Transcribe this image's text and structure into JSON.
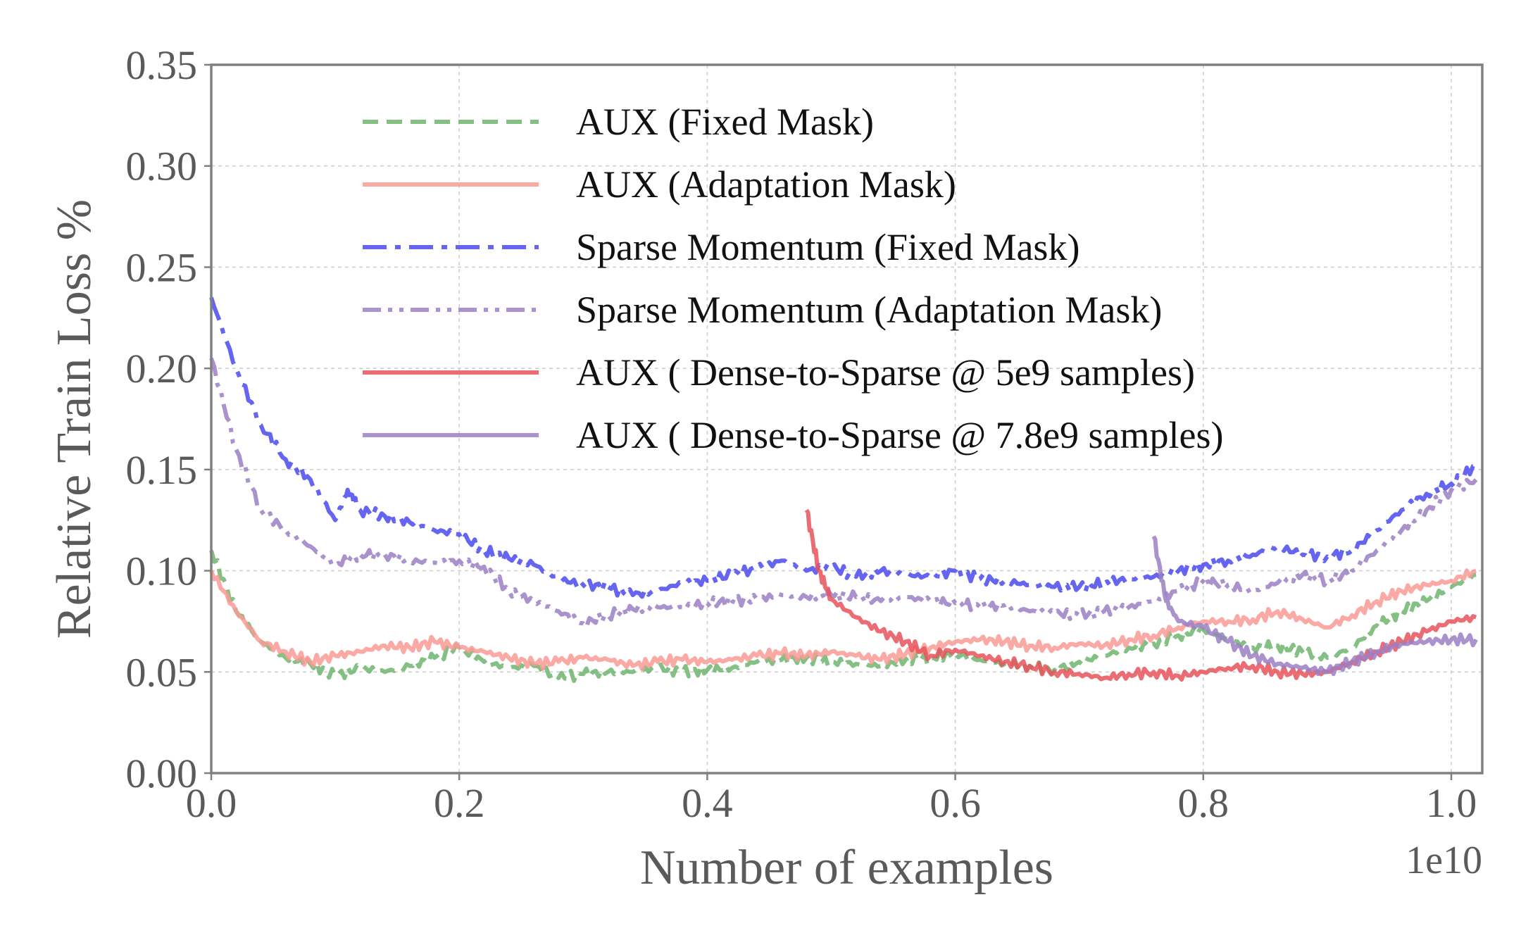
{
  "chart_data": {
    "type": "line",
    "xlabel": "Number of examples",
    "ylabel": "Relative Train Loss %",
    "x_offset_label": "1e10",
    "xlim": [
      0.0,
      1.025
    ],
    "ylim": [
      0.0,
      0.35
    ],
    "xticks": [
      0.0,
      0.2,
      0.4,
      0.6,
      0.8,
      1.0
    ],
    "xtick_labels": [
      "0.0",
      "0.2",
      "0.4",
      "0.6",
      "0.8",
      "1.0"
    ],
    "yticks": [
      0.0,
      0.05,
      0.1,
      0.15,
      0.2,
      0.25,
      0.3,
      0.35
    ],
    "ytick_labels": [
      "0.00",
      "0.05",
      "0.10",
      "0.15",
      "0.20",
      "0.25",
      "0.30",
      "0.35"
    ],
    "grid": true,
    "legend_position": "top-center",
    "series": [
      {
        "name": "AUX (Fixed Mask)",
        "color": "#6fb56f",
        "dash": "dashed",
        "x": [
          0.0,
          0.02,
          0.04,
          0.06,
          0.08,
          0.1,
          0.12,
          0.14,
          0.16,
          0.18,
          0.2,
          0.22,
          0.24,
          0.26,
          0.28,
          0.3,
          0.32,
          0.34,
          0.36,
          0.38,
          0.4,
          0.42,
          0.44,
          0.46,
          0.48,
          0.5,
          0.52,
          0.54,
          0.56,
          0.58,
          0.6,
          0.62,
          0.64,
          0.66,
          0.68,
          0.7,
          0.72,
          0.74,
          0.76,
          0.78,
          0.8,
          0.82,
          0.84,
          0.86,
          0.88,
          0.9,
          0.92,
          0.94,
          0.96,
          0.98,
          1.0,
          1.02
        ],
        "y": [
          0.11,
          0.08,
          0.065,
          0.057,
          0.054,
          0.048,
          0.052,
          0.05,
          0.053,
          0.057,
          0.062,
          0.055,
          0.052,
          0.053,
          0.047,
          0.049,
          0.05,
          0.05,
          0.052,
          0.05,
          0.051,
          0.052,
          0.055,
          0.056,
          0.057,
          0.055,
          0.054,
          0.053,
          0.056,
          0.057,
          0.059,
          0.056,
          0.054,
          0.053,
          0.051,
          0.055,
          0.058,
          0.062,
          0.064,
          0.068,
          0.071,
          0.066,
          0.062,
          0.063,
          0.06,
          0.057,
          0.062,
          0.073,
          0.08,
          0.085,
          0.092,
          0.098
        ]
      },
      {
        "name": "AUX (Adaptation Mask)",
        "color": "#fa9a94",
        "dash": "solid",
        "x": [
          0.0,
          0.02,
          0.04,
          0.06,
          0.08,
          0.1,
          0.12,
          0.14,
          0.16,
          0.18,
          0.2,
          0.22,
          0.24,
          0.26,
          0.28,
          0.3,
          0.32,
          0.34,
          0.36,
          0.38,
          0.4,
          0.42,
          0.44,
          0.46,
          0.48,
          0.5,
          0.52,
          0.54,
          0.56,
          0.58,
          0.6,
          0.62,
          0.64,
          0.66,
          0.68,
          0.7,
          0.72,
          0.74,
          0.76,
          0.78,
          0.8,
          0.82,
          0.84,
          0.86,
          0.88,
          0.9,
          0.92,
          0.94,
          0.96,
          0.98,
          1.0,
          1.02
        ],
        "y": [
          0.1,
          0.08,
          0.065,
          0.06,
          0.055,
          0.058,
          0.06,
          0.063,
          0.062,
          0.065,
          0.062,
          0.06,
          0.057,
          0.054,
          0.055,
          0.057,
          0.056,
          0.053,
          0.055,
          0.056,
          0.055,
          0.056,
          0.058,
          0.059,
          0.058,
          0.06,
          0.058,
          0.056,
          0.059,
          0.062,
          0.065,
          0.066,
          0.065,
          0.063,
          0.062,
          0.064,
          0.063,
          0.066,
          0.068,
          0.072,
          0.075,
          0.075,
          0.076,
          0.08,
          0.076,
          0.072,
          0.078,
          0.085,
          0.09,
          0.093,
          0.095,
          0.1
        ]
      },
      {
        "name": "Sparse Momentum (Fixed Mask)",
        "color": "#4a4af0",
        "dash": "dashdot",
        "x": [
          0.0,
          0.02,
          0.04,
          0.06,
          0.08,
          0.1,
          0.11,
          0.12,
          0.14,
          0.16,
          0.18,
          0.2,
          0.22,
          0.24,
          0.26,
          0.28,
          0.3,
          0.32,
          0.34,
          0.36,
          0.38,
          0.4,
          0.42,
          0.44,
          0.46,
          0.48,
          0.5,
          0.52,
          0.54,
          0.56,
          0.58,
          0.6,
          0.62,
          0.64,
          0.66,
          0.68,
          0.7,
          0.72,
          0.74,
          0.76,
          0.78,
          0.8,
          0.82,
          0.84,
          0.86,
          0.88,
          0.9,
          0.92,
          0.94,
          0.96,
          0.98,
          1.0,
          1.02
        ],
        "y": [
          0.235,
          0.2,
          0.172,
          0.155,
          0.145,
          0.125,
          0.14,
          0.13,
          0.127,
          0.124,
          0.12,
          0.118,
          0.11,
          0.106,
          0.103,
          0.096,
          0.093,
          0.092,
          0.088,
          0.09,
          0.094,
          0.095,
          0.098,
          0.101,
          0.105,
          0.1,
          0.102,
          0.097,
          0.1,
          0.098,
          0.097,
          0.1,
          0.096,
          0.095,
          0.093,
          0.092,
          0.092,
          0.094,
          0.096,
          0.097,
          0.1,
          0.103,
          0.105,
          0.108,
          0.112,
          0.108,
          0.107,
          0.11,
          0.12,
          0.13,
          0.138,
          0.143,
          0.152
        ]
      },
      {
        "name": "Sparse Momentum (Adaptation Mask)",
        "color": "#9b7fc4",
        "dash": "dashdotdot",
        "x": [
          0.0,
          0.02,
          0.04,
          0.06,
          0.08,
          0.1,
          0.12,
          0.14,
          0.16,
          0.18,
          0.2,
          0.22,
          0.24,
          0.26,
          0.28,
          0.3,
          0.32,
          0.34,
          0.36,
          0.38,
          0.4,
          0.42,
          0.44,
          0.46,
          0.48,
          0.5,
          0.52,
          0.54,
          0.56,
          0.58,
          0.6,
          0.62,
          0.64,
          0.66,
          0.68,
          0.7,
          0.72,
          0.74,
          0.76,
          0.78,
          0.8,
          0.82,
          0.84,
          0.86,
          0.88,
          0.9,
          0.92,
          0.94,
          0.96,
          0.98,
          1.0,
          1.02
        ],
        "y": [
          0.205,
          0.16,
          0.13,
          0.12,
          0.112,
          0.103,
          0.108,
          0.108,
          0.105,
          0.104,
          0.105,
          0.102,
          0.09,
          0.085,
          0.08,
          0.074,
          0.078,
          0.081,
          0.082,
          0.082,
          0.084,
          0.085,
          0.086,
          0.088,
          0.087,
          0.088,
          0.087,
          0.085,
          0.087,
          0.085,
          0.084,
          0.082,
          0.083,
          0.08,
          0.079,
          0.078,
          0.08,
          0.082,
          0.085,
          0.09,
          0.095,
          0.093,
          0.09,
          0.094,
          0.098,
          0.095,
          0.1,
          0.11,
          0.12,
          0.13,
          0.14,
          0.145
        ]
      },
      {
        "name": "AUX ( Dense-to-Sparse @ 5e9 samples)",
        "color": "#e8525a",
        "dash": "solid",
        "x": [
          0.48,
          0.49,
          0.5,
          0.52,
          0.54,
          0.56,
          0.58,
          0.6,
          0.62,
          0.64,
          0.66,
          0.68,
          0.7,
          0.72,
          0.74,
          0.76,
          0.78,
          0.8,
          0.82,
          0.84,
          0.86,
          0.88,
          0.9,
          0.92,
          0.94,
          0.96,
          0.98,
          1.0,
          1.02
        ],
        "y": [
          0.13,
          0.1,
          0.086,
          0.077,
          0.07,
          0.065,
          0.058,
          0.061,
          0.058,
          0.055,
          0.053,
          0.05,
          0.049,
          0.047,
          0.049,
          0.05,
          0.048,
          0.05,
          0.052,
          0.053,
          0.05,
          0.049,
          0.05,
          0.055,
          0.06,
          0.065,
          0.07,
          0.075,
          0.077
        ]
      },
      {
        "name": "AUX ( Dense-to-Sparse @ 7.8e9 samples)",
        "color": "#9b7fc4",
        "dash": "solid",
        "x": [
          0.76,
          0.77,
          0.78,
          0.8,
          0.82,
          0.84,
          0.86,
          0.88,
          0.9,
          0.92,
          0.94,
          0.96,
          0.98,
          1.0,
          1.02
        ],
        "y": [
          0.117,
          0.085,
          0.075,
          0.072,
          0.065,
          0.058,
          0.054,
          0.052,
          0.05,
          0.055,
          0.06,
          0.064,
          0.065,
          0.066,
          0.066
        ]
      }
    ]
  }
}
